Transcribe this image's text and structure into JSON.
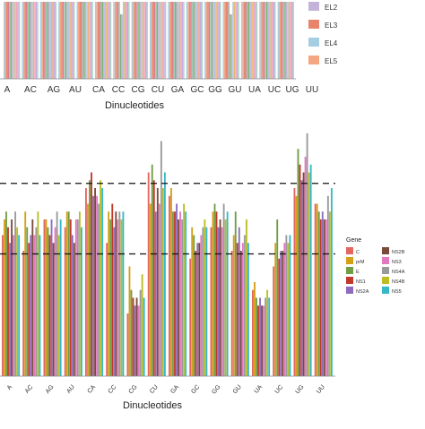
{
  "chart_data": [
    {
      "type": "bar",
      "xlabel": "Dinucleotides",
      "categories": [
        "A",
        "AC",
        "AG",
        "AU",
        "CA",
        "CC",
        "CG",
        "CU",
        "GA",
        "GC",
        "GG",
        "GU",
        "UA",
        "UC",
        "UG",
        "UU"
      ],
      "legend": [
        "EL2",
        "EL3",
        "EL4",
        "EL5"
      ],
      "legend_visible_partial": true,
      "colors": [
        "#a6cee3",
        "#f4a582",
        "#e8846c",
        "#d97e8f",
        "#9ec9b0",
        "#7fb17a",
        "#c3b3d8",
        "#b3c7e0",
        "#e9b86a",
        "#f6a5c0",
        "#c9a8e0",
        "#a7d5c4"
      ]
    },
    {
      "type": "bar",
      "xlabel": "Dinucleotides",
      "categories": [
        "A",
        "AC",
        "AG",
        "AU",
        "CA",
        "CC",
        "CG",
        "CU",
        "GA",
        "GC",
        "GG",
        "GU",
        "UA",
        "UC",
        "UG",
        "UU"
      ],
      "legend_title": "Gene",
      "series": [
        {
          "name": "C",
          "color": "#e4675f",
          "values": [
            0.9,
            0.8,
            1.0,
            0.95,
            1.2,
            0.85,
            0.4,
            1.3,
            1.15,
            0.75,
            0.95,
            0.8,
            0.55,
            0.7,
            1.2,
            1.1
          ]
        },
        {
          "name": "prM",
          "color": "#d4a017",
          "values": [
            1.0,
            1.05,
            1.0,
            1.05,
            1.1,
            1.05,
            0.7,
            1.1,
            1.2,
            0.95,
            1.05,
            0.9,
            0.6,
            0.85,
            1.15,
            1.1
          ]
        },
        {
          "name": "E",
          "color": "#6f9e45",
          "values": [
            1.05,
            0.95,
            0.95,
            1.05,
            1.25,
            1.0,
            0.55,
            1.35,
            1.05,
            0.9,
            1.1,
            1.05,
            0.5,
            1.0,
            1.45,
            1.05
          ]
        },
        {
          "name": "NS1",
          "color": "#c0392b",
          "values": [
            0.95,
            0.85,
            0.9,
            1.0,
            1.3,
            1.1,
            0.5,
            1.25,
            1.05,
            0.8,
            1.05,
            0.85,
            0.45,
            0.75,
            1.35,
            1.0
          ]
        },
        {
          "name": "NS2A",
          "color": "#8e6bbf",
          "values": [
            0.85,
            0.9,
            1.0,
            0.9,
            1.15,
            0.95,
            0.45,
            1.05,
            1.1,
            0.85,
            0.95,
            0.95,
            0.5,
            0.8,
            1.25,
            1.05
          ]
        },
        {
          "name": "NS2B",
          "color": "#7a4b3a",
          "values": [
            1.0,
            1.0,
            0.85,
            0.85,
            1.2,
            1.05,
            0.5,
            1.2,
            1.0,
            0.85,
            1.0,
            0.8,
            0.45,
            0.8,
            1.3,
            1.0
          ]
        },
        {
          "name": "NS3",
          "color": "#e377c2",
          "values": [
            0.9,
            0.9,
            0.95,
            1.0,
            1.15,
            1.0,
            0.45,
            1.1,
            1.05,
            0.9,
            0.95,
            0.85,
            0.45,
            0.85,
            1.4,
            1.0
          ]
        },
        {
          "name": "NS4A",
          "color": "#9a9a9a",
          "values": [
            1.05,
            0.95,
            1.05,
            1.0,
            1.1,
            1.05,
            0.55,
            1.5,
            1.0,
            0.95,
            1.1,
            0.9,
            0.5,
            0.9,
            1.55,
            1.15
          ]
        },
        {
          "name": "NS4B",
          "color": "#bcbd22",
          "values": [
            0.95,
            1.05,
            0.9,
            1.05,
            1.25,
            1.0,
            0.65,
            1.2,
            1.1,
            1.0,
            1.0,
            1.0,
            0.55,
            0.85,
            1.3,
            1.05
          ]
        },
        {
          "name": "NS5",
          "color": "#36b8c9",
          "values": [
            0.9,
            0.9,
            1.0,
            0.95,
            1.2,
            1.05,
            0.5,
            1.3,
            1.05,
            0.95,
            1.05,
            0.85,
            0.5,
            0.9,
            1.35,
            1.2
          ]
        }
      ],
      "reference_lines": [
        0.78,
        1.23
      ],
      "ylim": [
        0,
        1.6
      ]
    }
  ]
}
